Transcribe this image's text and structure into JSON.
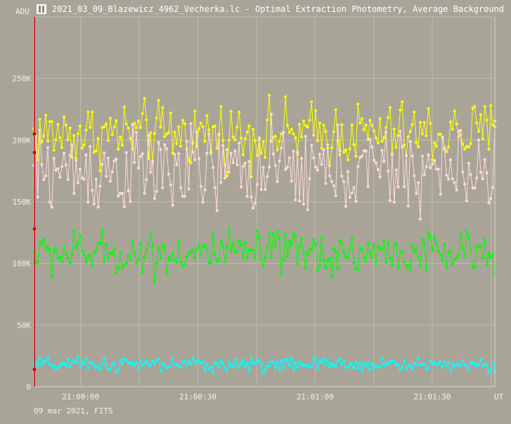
{
  "window": {
    "title": "2021_03_09_Blazewicz_4962_Vecherka.lc - Optimal Extraction Photometry, Average Background",
    "icon": "app-logo-icon"
  },
  "footer": {
    "date_label": "09 mar 2021, FITS"
  },
  "chart_data": {
    "type": "line",
    "title": "",
    "xlabel": "UT",
    "ylabel": "ADU",
    "x_ticks": [
      "21:00:00",
      "21:00:30",
      "21:01:00",
      "21:01:30"
    ],
    "y_ticks": [
      "0",
      "50K",
      "100K",
      "150K",
      "200K",
      "250K"
    ],
    "ylim": [
      0,
      300000
    ],
    "xlim_seconds": [
      0,
      118
    ],
    "x_tick_seconds": [
      12,
      42,
      72,
      102
    ],
    "grid": true,
    "colors": {
      "background": "#a8a598",
      "grid": "#bebbb0",
      "marker_line": "#cc0000",
      "yellow_series": "#ffff00",
      "pink_series": "#ffd9d9",
      "green_series": "#00ff00",
      "cyan_series": "#00ffff"
    },
    "series": [
      {
        "color": "yellow",
        "mean": 205000,
        "spread": 16000,
        "n": 230
      },
      {
        "color": "pink",
        "mean": 175000,
        "spread": 22000,
        "n": 230
      },
      {
        "color": "green",
        "mean": 108000,
        "spread": 11000,
        "n": 230
      },
      {
        "color": "cyan",
        "mean": 18000,
        "spread": 3500,
        "n": 230
      }
    ]
  }
}
